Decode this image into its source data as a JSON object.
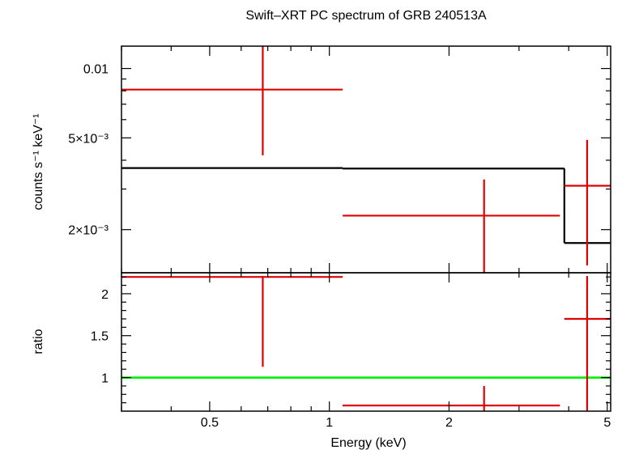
{
  "chart_data": [
    {
      "type": "scatter",
      "title": "Swift–XRT PC spectrum of GRB 240513A",
      "ylabel": "counts s⁻¹ keV⁻¹",
      "xscale": "log",
      "yscale": "log",
      "xlim": [
        0.3,
        5.1
      ],
      "ylim": [
        0.0013,
        0.0125
      ],
      "yticks": [
        {
          "value": 0.01,
          "label": "0.01"
        },
        {
          "value": 0.005,
          "label": "5×10⁻³"
        },
        {
          "value": 0.002,
          "label": "2×10⁻³"
        }
      ],
      "grid": false,
      "series": [
        {
          "kind": "data",
          "color": "#e00000",
          "points": [
            {
              "x": 0.68,
              "xlo": 0.3,
              "xhi": 1.08,
              "y": 0.0081,
              "ylo": 0.0042,
              "yhi": 0.0125
            },
            {
              "x": 2.45,
              "xlo": 1.08,
              "xhi": 3.8,
              "y": 0.0023,
              "ylo": 0.0013,
              "yhi": 0.0033
            },
            {
              "x": 4.45,
              "xlo": 3.9,
              "xhi": 5.1,
              "y": 0.0031,
              "ylo": 0.0014,
              "yhi": 0.0049
            }
          ]
        },
        {
          "kind": "model",
          "color": "#000000",
          "steps": [
            {
              "x0": 0.3,
              "x1": 1.08,
              "y": 0.0037
            },
            {
              "x0": 1.08,
              "x1": 3.9,
              "y": 0.00368
            },
            {
              "x0": 3.9,
              "x1": 5.1,
              "y": 0.00175
            }
          ]
        }
      ]
    },
    {
      "type": "scatter",
      "xlabel": "Energy (keV)",
      "ylabel": "ratio",
      "xscale": "log",
      "yscale": "linear",
      "xlim": [
        0.3,
        5.1
      ],
      "ylim": [
        0.6,
        2.25
      ],
      "xticks": [
        {
          "value": 0.5,
          "label": "0.5"
        },
        {
          "value": 1,
          "label": "1"
        },
        {
          "value": 2,
          "label": "2"
        },
        {
          "value": 5,
          "label": "5"
        }
      ],
      "yticks": [
        {
          "value": 1,
          "label": "1"
        },
        {
          "value": 1.5,
          "label": "1.5"
        },
        {
          "value": 2,
          "label": "2"
        }
      ],
      "grid": false,
      "reference_line": {
        "y": 1,
        "color": "#00ee00"
      },
      "series": [
        {
          "kind": "data",
          "color": "#e00000",
          "points": [
            {
              "x": 0.68,
              "xlo": 0.3,
              "xhi": 1.08,
              "y": 2.2,
              "ylo": 1.13,
              "yhi": 2.25
            },
            {
              "x": 2.45,
              "xlo": 1.08,
              "xhi": 3.8,
              "y": 0.6,
              "ylo": 0.6,
              "yhi": 0.9
            },
            {
              "x": 4.45,
              "xlo": 3.9,
              "xhi": 5.1,
              "y": 1.7,
              "ylo": 0.6,
              "yhi": 2.25
            }
          ]
        }
      ]
    }
  ]
}
